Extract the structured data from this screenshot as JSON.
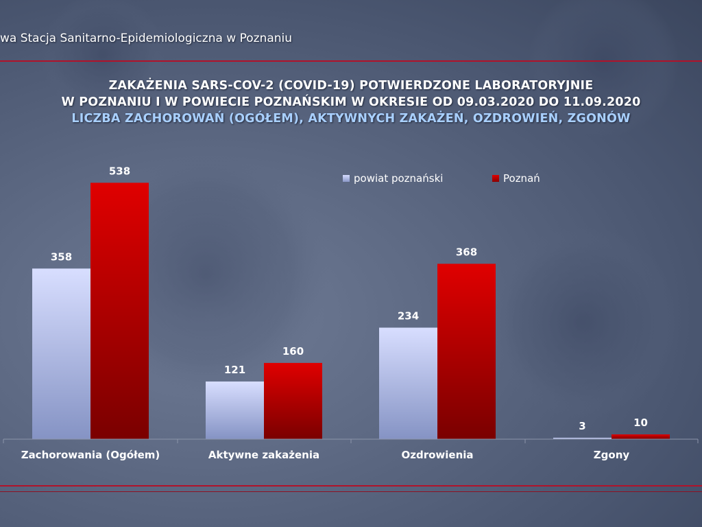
{
  "header": {
    "organization": "wa Stacja Sanitarno-Epidemiologiczna w Poznaniu"
  },
  "title": {
    "line1": "ZAKAŻENIA SARS-COV-2 (COVID-19) POTWIERDZONE LABORATORYJNIE",
    "line2": "W POZNANIU I W POWIECIE POZNAŃSKIM W OKRESIE OD 09.03.2020 DO 11.09.2020",
    "line3": "LICZBA ZACHOROWAŃ (OGÓŁEM), AKTYWNYCH ZAKAŻEŃ, OZDROWIEŃ, ZGONÓW"
  },
  "legend": {
    "series1": "powiat poznański",
    "series2": "Poznań"
  },
  "colors": {
    "series1_top": "#d8deff",
    "series1_bottom": "#8593c4",
    "series2_top": "#e00000",
    "series2_bottom": "#7a0000",
    "rule": "#b1122a"
  },
  "chart_data": {
    "type": "bar",
    "categories": [
      "Zachorowania (Ogółem)",
      "Aktywne zakażenia",
      "Ozdrowienia",
      "Zgony"
    ],
    "series": [
      {
        "name": "powiat poznański",
        "values": [
          358,
          121,
          234,
          3
        ]
      },
      {
        "name": "Poznań",
        "values": [
          538,
          160,
          368,
          10
        ]
      }
    ],
    "ylim": [
      0,
      600
    ],
    "grid": false,
    "legend_position": "top-right"
  }
}
